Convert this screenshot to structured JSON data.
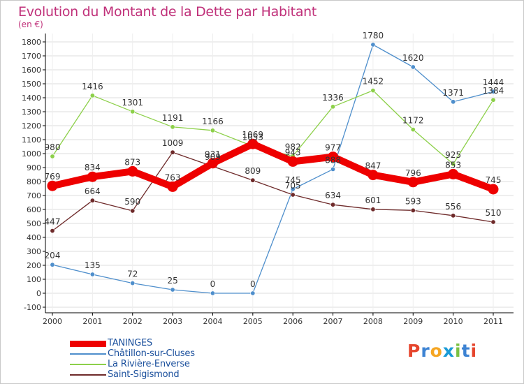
{
  "header": {
    "title": "Evolution du Montant de la Dette par Habitant",
    "unit": "(en €)"
  },
  "colors": {
    "title": "#c0317a",
    "axis": "#000000",
    "grid": "#dddddd",
    "legend_text": "#1a4f9c",
    "label": "#333333"
  },
  "chart_data": {
    "type": "line",
    "title": "Evolution du Montant de la Dette par Habitant",
    "ylabel": "(en €)",
    "xlabel": "",
    "x": [
      "2000",
      "2001",
      "2002",
      "2003",
      "2004",
      "2005",
      "2006",
      "2007",
      "2008",
      "2009",
      "2010",
      "2011"
    ],
    "ylim": [
      -100,
      1800
    ],
    "yticks": [
      -100,
      0,
      100,
      200,
      300,
      400,
      500,
      600,
      700,
      800,
      900,
      1000,
      1100,
      1200,
      1300,
      1400,
      1500,
      1600,
      1700,
      1800
    ],
    "grid": true,
    "legend_position": "bottom-left",
    "series": [
      {
        "name": "TANINGES",
        "color": "#ee0000",
        "emphasis": true,
        "values": [
          769,
          834,
          873,
          763,
          931,
          1069,
          943,
          977,
          847,
          796,
          853,
          745
        ]
      },
      {
        "name": "Châtillon-sur-Cluses",
        "color": "#4f8fcc",
        "values": [
          204,
          135,
          72,
          25,
          0,
          0,
          745,
          888,
          1780,
          1620,
          1371,
          1444
        ]
      },
      {
        "name": "La Rivière-Enverse",
        "color": "#8dd04a",
        "values": [
          980,
          1416,
          1301,
          1191,
          1166,
          1053,
          982,
          1336,
          1452,
          1172,
          925,
          1384
        ]
      },
      {
        "name": "Saint-Sigismond",
        "color": "#6e2a2a",
        "values": [
          447,
          664,
          590,
          1009,
          909,
          809,
          705,
          634,
          601,
          593,
          556,
          510
        ]
      }
    ]
  },
  "legend": {
    "items": [
      {
        "label": "TANINGES"
      },
      {
        "label": "Châtillon-sur-Cluses"
      },
      {
        "label": "La Rivière-Enverse"
      },
      {
        "label": "Saint-Sigismond"
      }
    ]
  },
  "logo": {
    "text": "Proxiti",
    "letter_colors": [
      "#e6452d",
      "#3d83d3",
      "#f5a623",
      "#1a9bd7",
      "#7ac143",
      "#3d83d3",
      "#e6452d"
    ]
  }
}
